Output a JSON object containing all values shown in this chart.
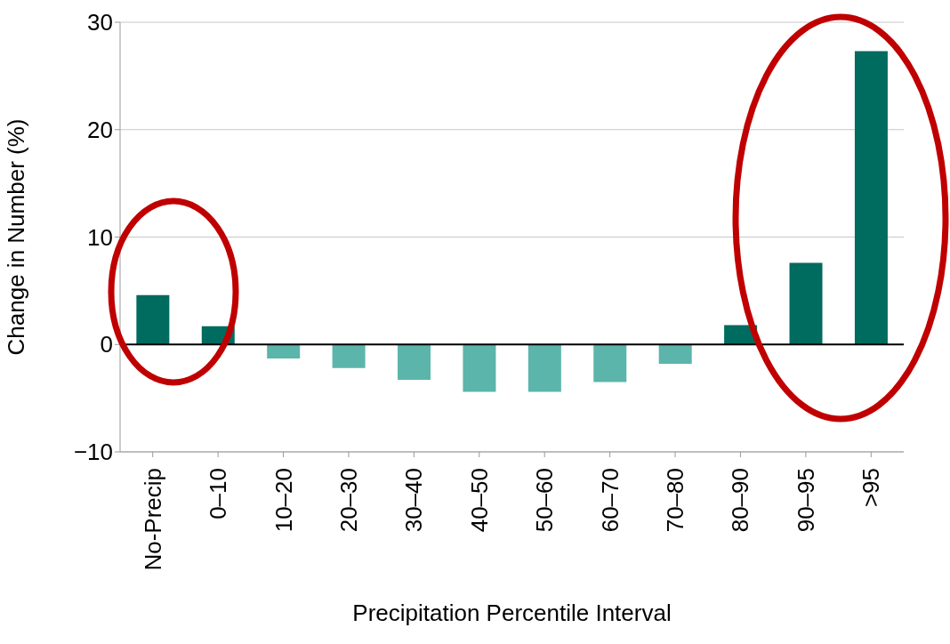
{
  "chart_data": {
    "type": "bar",
    "xlabel": "Precipitation Percentile Interval",
    "ylabel": "Change in Number (%)",
    "categories": [
      "No-Precip",
      "0–10",
      "10–20",
      "20–30",
      "30–40",
      "40–50",
      "50–60",
      "60–70",
      "70–80",
      "80–90",
      "90–95",
      ">95"
    ],
    "values": [
      4.6,
      1.7,
      -1.3,
      -2.2,
      -3.3,
      -4.4,
      -4.4,
      -3.5,
      -1.8,
      1.8,
      7.6,
      27.3
    ],
    "colors": [
      "#006b5f",
      "#006b5f",
      "#5bb5aa",
      "#5bb5aa",
      "#5bb5aa",
      "#5bb5aa",
      "#5bb5aa",
      "#5bb5aa",
      "#5bb5aa",
      "#006b5f",
      "#006b5f",
      "#006b5f"
    ],
    "ylim": [
      -10,
      30
    ],
    "yticks": [
      -10,
      0,
      10,
      20,
      30
    ],
    "grid": "y",
    "ref_lines": [
      {
        "axis": "y",
        "value": 0,
        "color": "#000000"
      }
    ]
  }
}
